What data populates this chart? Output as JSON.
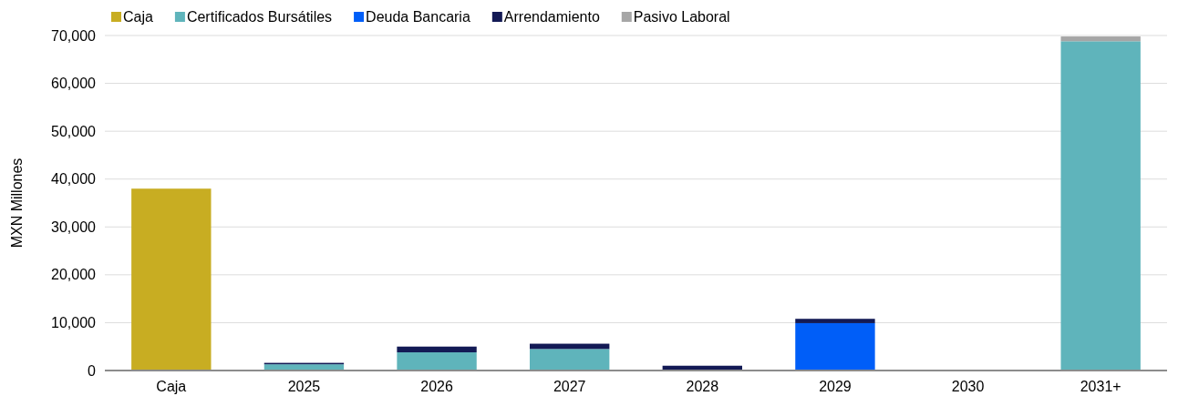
{
  "chart_data": {
    "type": "bar",
    "stacked": true,
    "ylabel": "MXN Millones",
    "categories": [
      "Caja",
      "2025",
      "2026",
      "2027",
      "2028",
      "2029",
      "2030",
      "2031+"
    ],
    "series": [
      {
        "name": "Caja",
        "color": "#c8ad22",
        "values": [
          38000,
          null,
          null,
          null,
          null,
          null,
          null,
          null
        ]
      },
      {
        "name": "Certificados Bursátiles",
        "color": "#5fb4bb",
        "values": [
          null,
          1300,
          3800,
          4500,
          null,
          null,
          null,
          68800
        ]
      },
      {
        "name": "Deuda Bancaria",
        "color": "#005ef8",
        "values": [
          null,
          null,
          null,
          null,
          null,
          9900,
          null,
          null
        ]
      },
      {
        "name": "Arrendamiento",
        "color": "#131a55",
        "values": [
          null,
          300,
          1200,
          1100,
          1000,
          900,
          null,
          null
        ]
      },
      {
        "name": "Pasivo Laboral",
        "color": "#a6a6a6",
        "values": [
          null,
          null,
          null,
          null,
          null,
          null,
          null,
          1000
        ]
      }
    ],
    "ylim": [
      0,
      70000
    ],
    "yticks": [
      {
        "value": 0,
        "label": "0"
      },
      {
        "value": 10000,
        "label": "10,000"
      },
      {
        "value": 20000,
        "label": "20,000"
      },
      {
        "value": 30000,
        "label": "30,000"
      },
      {
        "value": 40000,
        "label": "40,000"
      },
      {
        "value": 50000,
        "label": "50,000"
      },
      {
        "value": 60000,
        "label": "60,000"
      },
      {
        "value": 70000,
        "label": "70,000"
      }
    ],
    "grid": "y",
    "legend": "top left"
  }
}
